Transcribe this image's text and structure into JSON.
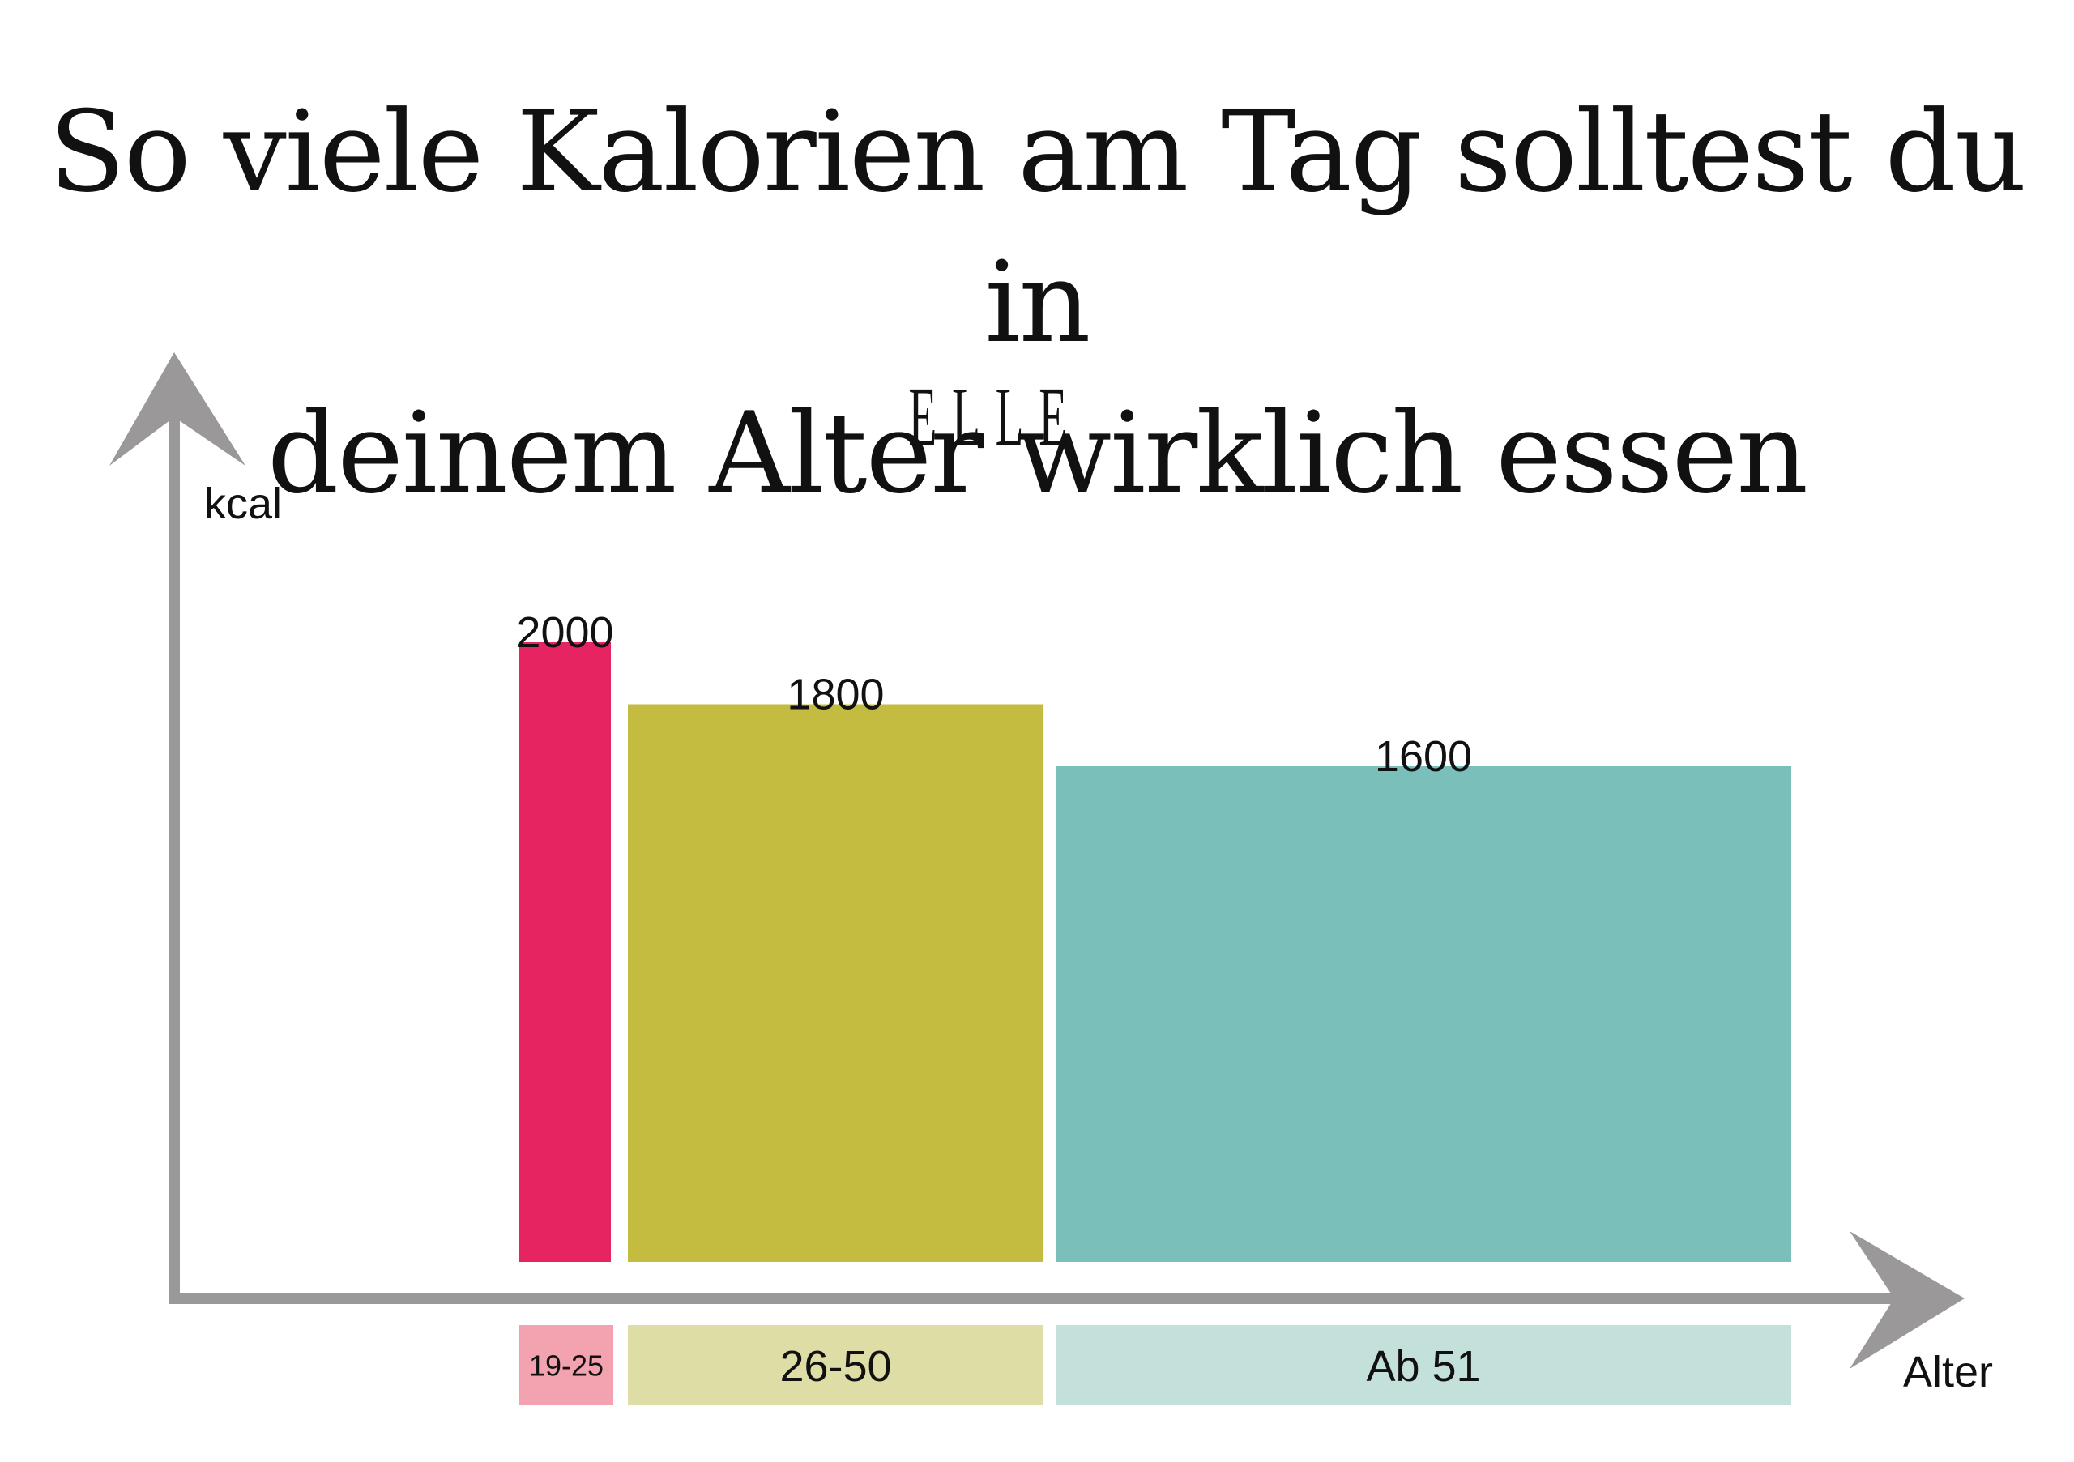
{
  "title_lines": [
    "So viele Kalorien am Tag solltest du in",
    "deinem Alter wirklich essen"
  ],
  "brand": "ELLE",
  "chart_data": {
    "type": "bar",
    "title": "So viele Kalorien am Tag solltest du in deinem Alter wirklich essen",
    "xlabel": "Alter",
    "ylabel": "kcal",
    "categories": [
      "19-25",
      "26-50",
      "Ab 51"
    ],
    "values": [
      2000,
      1800,
      1600
    ],
    "bar_colors": [
      "#E62462",
      "#C3BC40",
      "#7ABFBA"
    ],
    "label_colors": [
      "#F3A2B0",
      "#DFDDA6",
      "#C4E0DB"
    ],
    "axis_color": "#9A9899",
    "grid": false,
    "legend": "none"
  }
}
